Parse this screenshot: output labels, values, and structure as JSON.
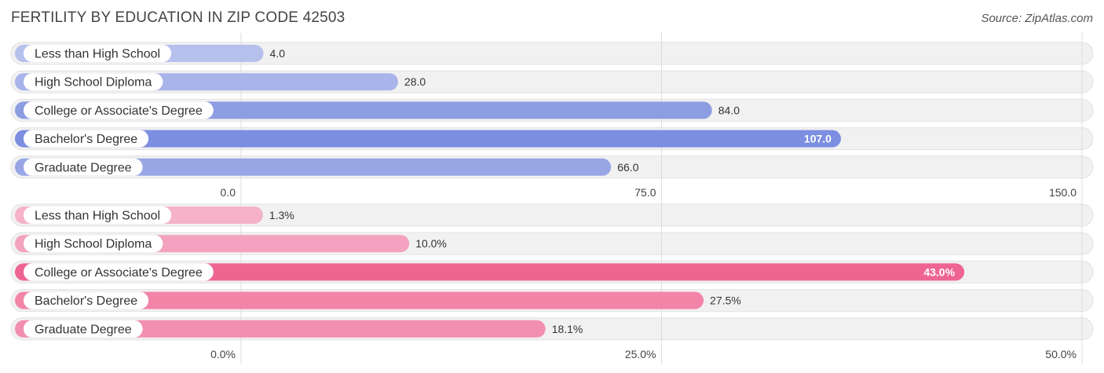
{
  "header": {
    "title": "FERTILITY BY EDUCATION IN ZIP CODE 42503",
    "source": "Source: ZipAtlas.com"
  },
  "chart_data": [
    {
      "type": "bar",
      "orientation": "horizontal",
      "categories": [
        "Less than High School",
        "High School Diploma",
        "College or Associate's Degree",
        "Bachelor's Degree",
        "Graduate Degree"
      ],
      "values": [
        4.0,
        28.0,
        84.0,
        107.0,
        66.0
      ],
      "value_labels": [
        "4.0",
        "28.0",
        "84.0",
        "107.0",
        "66.0"
      ],
      "xlim": [
        0,
        150
      ],
      "ticks": [
        0,
        75,
        150
      ],
      "tick_labels": [
        "0.0",
        "75.0",
        "150.0"
      ],
      "colors": [
        "#b6c0ec",
        "#a8b4ea",
        "#8d9de2",
        "#7b8ee0",
        "#98a6e5"
      ],
      "highlight_index": 3
    },
    {
      "type": "bar",
      "orientation": "horizontal",
      "categories": [
        "Less than High School",
        "High School Diploma",
        "College or Associate's Degree",
        "Bachelor's Degree",
        "Graduate Degree"
      ],
      "values": [
        1.3,
        10.0,
        43.0,
        27.5,
        18.1
      ],
      "value_labels": [
        "1.3%",
        "10.0%",
        "43.0%",
        "27.5%",
        "18.1%"
      ],
      "xlim": [
        0,
        50
      ],
      "ticks": [
        0,
        25,
        50
      ],
      "tick_labels": [
        "0.0%",
        "25.0%",
        "50.0%"
      ],
      "colors": [
        "#f5b2c8",
        "#f3a3bf",
        "#ee6592",
        "#f384a8",
        "#f28fb0"
      ],
      "highlight_index": 2
    }
  ]
}
